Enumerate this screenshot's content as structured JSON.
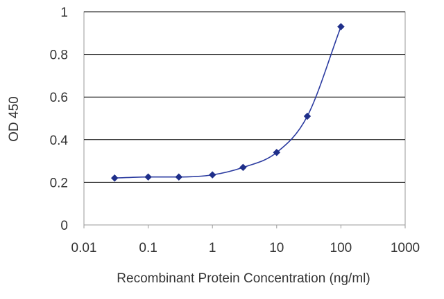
{
  "chart_data": {
    "type": "scatter",
    "title": "",
    "xlabel": "Recombinant Protein Concentration (ng/ml)",
    "ylabel": "OD 450",
    "xscale": "log",
    "xlim": [
      0.01,
      1000
    ],
    "ylim": [
      0,
      1
    ],
    "xticks": [
      "0.01",
      "0.1",
      "1",
      "10",
      "100",
      "1000"
    ],
    "yticks": [
      "0",
      "0.2",
      "0.4",
      "0.6",
      "0.8",
      "1"
    ],
    "grid": "horizontal",
    "legend": "none",
    "fitted_curve": true,
    "colors": {
      "marker": "#1f2f8a",
      "curve": "#2b3ba0",
      "grid": "#000000",
      "plot_border": "#999999",
      "text": "#333333"
    },
    "series": [
      {
        "x": [
          0.03,
          0.1,
          0.3,
          1,
          3,
          10,
          30,
          100
        ],
        "y": [
          0.22,
          0.225,
          0.225,
          0.235,
          0.27,
          0.34,
          0.51,
          0.93
        ]
      }
    ]
  }
}
